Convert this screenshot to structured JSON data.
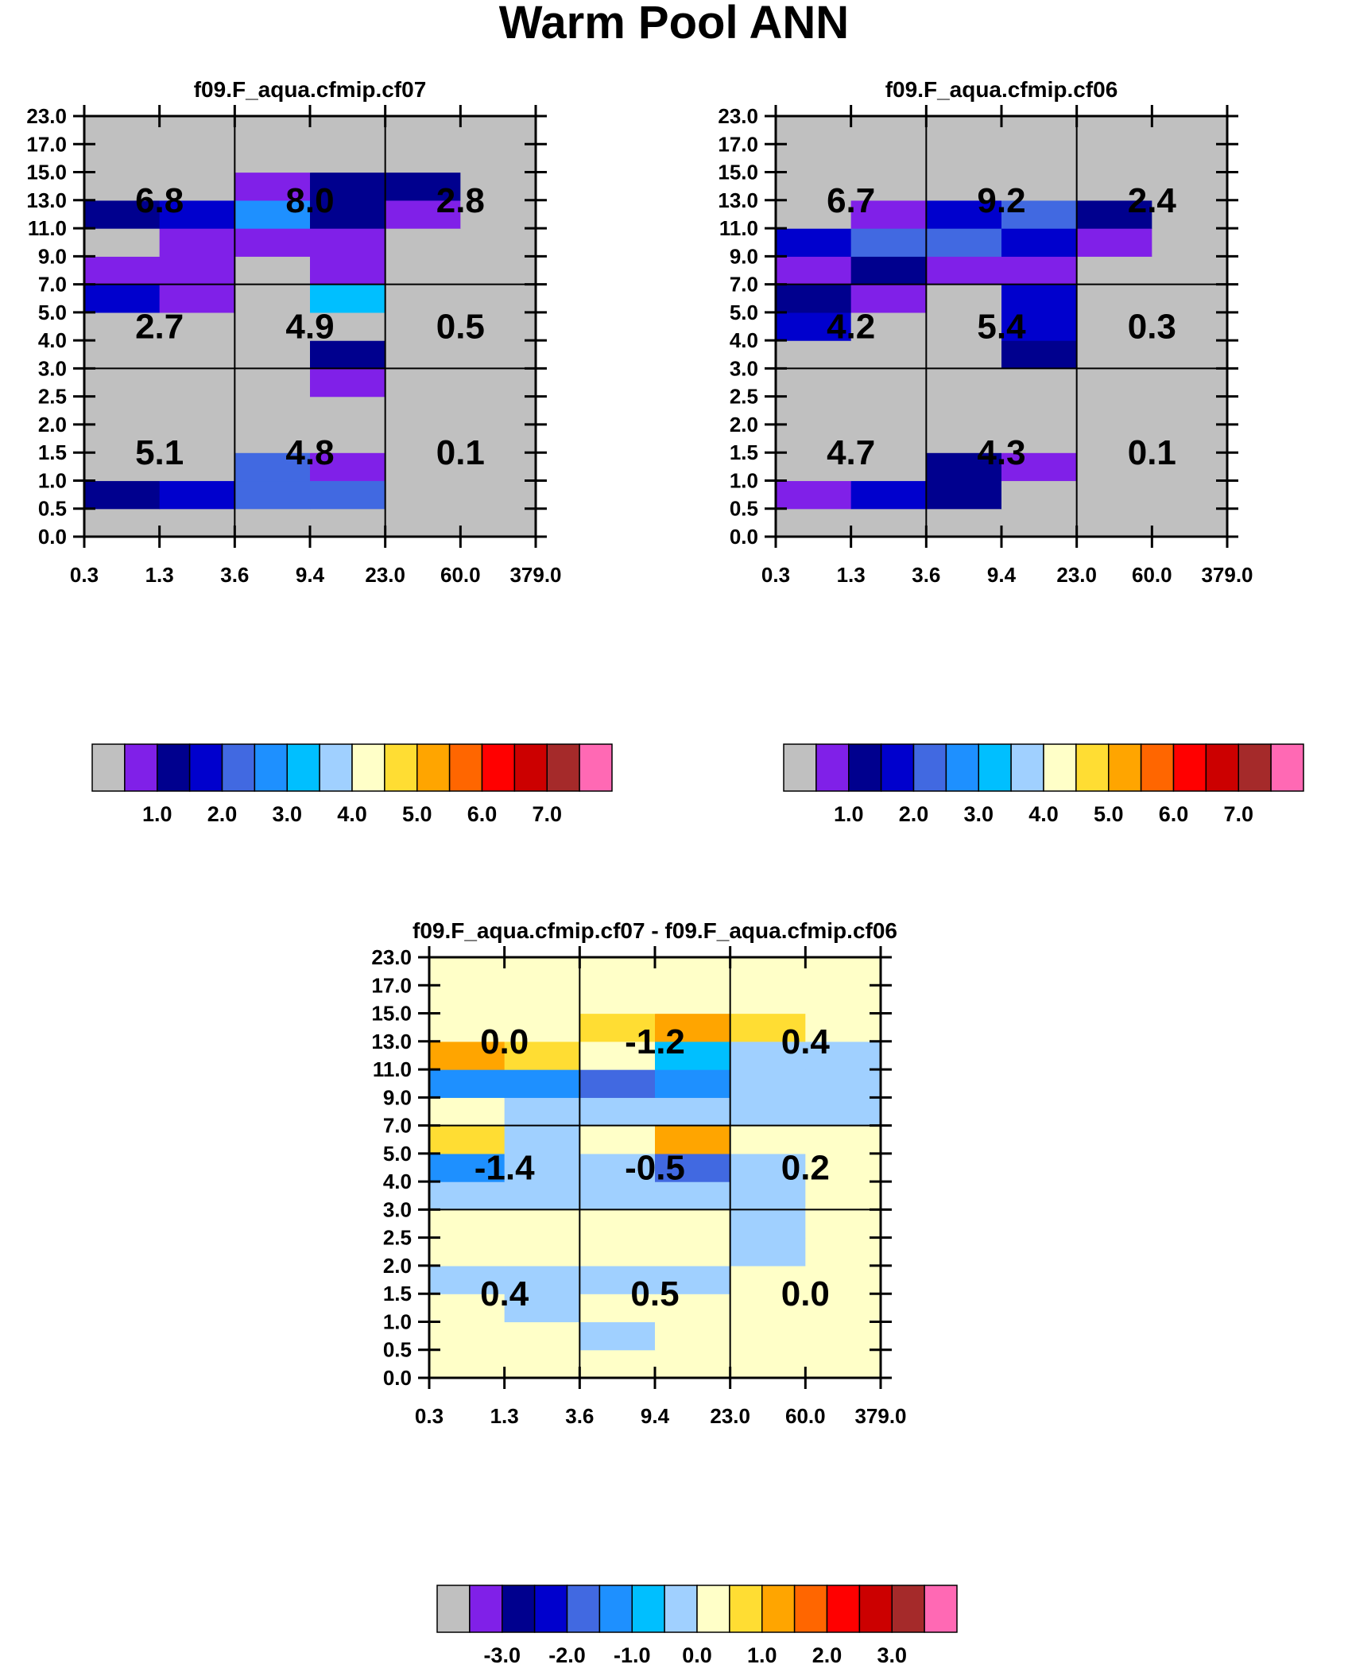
{
  "figure_title": "Warm Pool ANN",
  "chart_data": [
    {
      "type": "heatmap",
      "title": "f09.F_aqua.cfmip.cf07",
      "x_edges": [
        "0.3",
        "1.3",
        "3.6",
        "9.4",
        "23.0",
        "60.0",
        "379.0"
      ],
      "y_edges": [
        "0.0",
        "0.5",
        "1.0",
        "1.5",
        "2.0",
        "2.5",
        "3.0",
        "4.0",
        "5.0",
        "7.0",
        "9.0",
        "11.0",
        "13.0",
        "15.0",
        "17.0",
        "23.0"
      ],
      "levels": [
        "1.0",
        "2.0",
        "3.0",
        "4.0",
        "5.0",
        "6.0",
        "7.0"
      ],
      "grid": [
        [
          0,
          0,
          0,
          0,
          0,
          0
        ],
        [
          2,
          3,
          4,
          4,
          0,
          0
        ],
        [
          0,
          0,
          4,
          1,
          0,
          0
        ],
        [
          0,
          0,
          0,
          0,
          0,
          0
        ],
        [
          0,
          0,
          0,
          0,
          0,
          0
        ],
        [
          0,
          0,
          0,
          1,
          0,
          0
        ],
        [
          0,
          0,
          0,
          2,
          0,
          0
        ],
        [
          0,
          0,
          0,
          0,
          0,
          0
        ],
        [
          3,
          1,
          0,
          6,
          0,
          0
        ],
        [
          1,
          1,
          0,
          1,
          0,
          0
        ],
        [
          0,
          1,
          1,
          1,
          0,
          0
        ],
        [
          2,
          3,
          5,
          2,
          1,
          0
        ],
        [
          0,
          0,
          1,
          2,
          2,
          0
        ],
        [
          0,
          0,
          0,
          0,
          0,
          0
        ],
        [
          0,
          0,
          0,
          0,
          0,
          0
        ]
      ],
      "summary_values": [
        [
          "5.1",
          "4.8",
          "0.1"
        ],
        [
          "2.7",
          "4.9",
          "0.5"
        ],
        [
          "6.8",
          "8.0",
          "2.8"
        ]
      ]
    },
    {
      "type": "heatmap",
      "title": "f09.F_aqua.cfmip.cf06",
      "x_edges": [
        "0.3",
        "1.3",
        "3.6",
        "9.4",
        "23.0",
        "60.0",
        "379.0"
      ],
      "y_edges": [
        "0.0",
        "0.5",
        "1.0",
        "1.5",
        "2.0",
        "2.5",
        "3.0",
        "4.0",
        "5.0",
        "7.0",
        "9.0",
        "11.0",
        "13.0",
        "15.0",
        "17.0",
        "23.0"
      ],
      "levels": [
        "1.0",
        "2.0",
        "3.0",
        "4.0",
        "5.0",
        "6.0",
        "7.0"
      ],
      "grid": [
        [
          0,
          0,
          0,
          0,
          0,
          0
        ],
        [
          1,
          3,
          2,
          0,
          0,
          0
        ],
        [
          0,
          0,
          2,
          1,
          0,
          0
        ],
        [
          0,
          0,
          0,
          0,
          0,
          0
        ],
        [
          0,
          0,
          0,
          0,
          0,
          0
        ],
        [
          0,
          0,
          0,
          0,
          0,
          0
        ],
        [
          0,
          0,
          0,
          2,
          0,
          0
        ],
        [
          3,
          0,
          0,
          3,
          0,
          0
        ],
        [
          2,
          1,
          0,
          3,
          0,
          0
        ],
        [
          1,
          2,
          1,
          1,
          0,
          0
        ],
        [
          3,
          4,
          4,
          3,
          1,
          0
        ],
        [
          0,
          1,
          3,
          4,
          2,
          0
        ],
        [
          0,
          0,
          0,
          0,
          0,
          0
        ],
        [
          0,
          0,
          0,
          0,
          0,
          0
        ],
        [
          0,
          0,
          0,
          0,
          0,
          0
        ]
      ],
      "summary_values": [
        [
          "4.7",
          "4.3",
          "0.1"
        ],
        [
          "4.2",
          "5.4",
          "0.3"
        ],
        [
          "6.7",
          "9.2",
          "2.4"
        ]
      ]
    },
    {
      "type": "heatmap",
      "title": "f09.F_aqua.cfmip.cf07 - f09.F_aqua.cfmip.cf06",
      "x_edges": [
        "0.3",
        "1.3",
        "3.6",
        "9.4",
        "23.0",
        "60.0",
        "379.0"
      ],
      "y_edges": [
        "0.0",
        "0.5",
        "1.0",
        "1.5",
        "2.0",
        "2.5",
        "3.0",
        "4.0",
        "5.0",
        "7.0",
        "9.0",
        "11.0",
        "13.0",
        "15.0",
        "17.0",
        "23.0"
      ],
      "levels": [
        "-3.0",
        "-2.0",
        "-1.0",
        "0.0",
        "1.0",
        "2.0",
        "3.0"
      ],
      "grid": [
        [
          8,
          8,
          8,
          8,
          8,
          8
        ],
        [
          8,
          8,
          7,
          8,
          8,
          8
        ],
        [
          8,
          7,
          8,
          8,
          8,
          8
        ],
        [
          7,
          7,
          7,
          7,
          8,
          8
        ],
        [
          8,
          8,
          8,
          8,
          7,
          8
        ],
        [
          8,
          8,
          8,
          8,
          7,
          8
        ],
        [
          7,
          7,
          7,
          7,
          7,
          8
        ],
        [
          5,
          7,
          7,
          4,
          7,
          8
        ],
        [
          9,
          7,
          8,
          10,
          8,
          8
        ],
        [
          8,
          7,
          7,
          7,
          7,
          7
        ],
        [
          5,
          5,
          4,
          5,
          7,
          7
        ],
        [
          10,
          9,
          8,
          6,
          7,
          7
        ],
        [
          8,
          8,
          9,
          10,
          9,
          8
        ],
        [
          8,
          8,
          8,
          8,
          8,
          8
        ],
        [
          8,
          8,
          8,
          8,
          8,
          8
        ]
      ],
      "summary_values": [
        [
          "0.4",
          "0.5",
          "0.0"
        ],
        [
          "-1.4",
          "-0.5",
          "0.2"
        ],
        [
          "0.0",
          "-1.2",
          "0.4"
        ]
      ]
    }
  ],
  "palette": [
    "#c0c0c0",
    "#8020e8",
    "#00008e",
    "#0000cd",
    "#4169e1",
    "#1e90ff",
    "#00bfff",
    "#a0d0ff",
    "#ffffc8",
    "#ffdd33",
    "#ffa500",
    "#ff6600",
    "#ff0000",
    "#cc0000",
    "#a52a2a",
    "#ff69b4"
  ]
}
